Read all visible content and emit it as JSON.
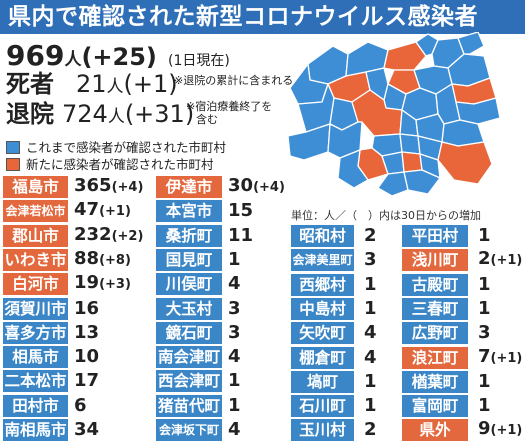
{
  "title": "県内で確認された新型コロナウイルス感染者",
  "summary": {
    "total": "969",
    "total_unit": "人",
    "total_inc": "(+25)",
    "date_note": "(1日現在)",
    "deaths_label": "死者",
    "deaths": "21",
    "deaths_unit": "人",
    "deaths_inc": "(+1)",
    "deaths_note": "※退院の累計に含まれる",
    "recovered_label": "退院",
    "recovered": "724",
    "recovered_unit": "人",
    "recovered_inc": "(+31)",
    "recovered_note_1": "※宿泊療養終了を",
    "recovered_note_2": "含む"
  },
  "legend": {
    "prior": "これまで感染者が確認された市町村",
    "new": "新たに感染者が確認された市町村",
    "prior_color": "#3e8ed6",
    "new_color": "#e8663a"
  },
  "unit_note": "単位：人／（　）内は30日からの増加",
  "col1": [
    {
      "name": "福島市",
      "value": "365",
      "inc": "(+4)",
      "new": true
    },
    {
      "name": "会津若松市",
      "value": "47",
      "inc": "(+1)",
      "new": true
    },
    {
      "name": "郡山市",
      "value": "232",
      "inc": "(+2)",
      "new": true
    },
    {
      "name": "いわき市",
      "value": "88",
      "inc": "(+8)",
      "new": true
    },
    {
      "name": "白河市",
      "value": "19",
      "inc": "(+3)",
      "new": true
    },
    {
      "name": "須賀川市",
      "value": "16",
      "inc": "",
      "new": false
    },
    {
      "name": "喜多方市",
      "value": "13",
      "inc": "",
      "new": false
    },
    {
      "name": "相馬市",
      "value": "10",
      "inc": "",
      "new": false
    },
    {
      "name": "二本松市",
      "value": "17",
      "inc": "",
      "new": false
    },
    {
      "name": "田村市",
      "value": "6",
      "inc": "",
      "new": false
    },
    {
      "name": "南相馬市",
      "value": "34",
      "inc": "",
      "new": false
    }
  ],
  "col2": [
    {
      "name": "伊達市",
      "value": "30",
      "inc": "(+4)",
      "new": true
    },
    {
      "name": "本宮市",
      "value": "15",
      "inc": "",
      "new": false
    },
    {
      "name": "桑折町",
      "value": "11",
      "inc": "",
      "new": false
    },
    {
      "name": "国見町",
      "value": "1",
      "inc": "",
      "new": false
    },
    {
      "name": "川俣町",
      "value": "4",
      "inc": "",
      "new": false
    },
    {
      "name": "大玉村",
      "value": "3",
      "inc": "",
      "new": false
    },
    {
      "name": "鏡石町",
      "value": "3",
      "inc": "",
      "new": false
    },
    {
      "name": "南会津町",
      "value": "4",
      "inc": "",
      "new": false
    },
    {
      "name": "西会津町",
      "value": "1",
      "inc": "",
      "new": false
    },
    {
      "name": "猪苗代町",
      "value": "1",
      "inc": "",
      "new": false
    },
    {
      "name": "会津坂下町",
      "value": "4",
      "inc": "",
      "new": false
    }
  ],
  "col3": [
    {
      "name": "昭和村",
      "value": "2",
      "inc": "",
      "new": false
    },
    {
      "name": "会津美里町",
      "value": "3",
      "inc": "",
      "new": false
    },
    {
      "name": "西郷村",
      "value": "1",
      "inc": "",
      "new": false
    },
    {
      "name": "中島村",
      "value": "1",
      "inc": "",
      "new": false
    },
    {
      "name": "矢吹町",
      "value": "4",
      "inc": "",
      "new": false
    },
    {
      "name": "棚倉町",
      "value": "4",
      "inc": "",
      "new": false
    },
    {
      "name": "塙町",
      "value": "1",
      "inc": "",
      "new": false
    },
    {
      "name": "石川町",
      "value": "1",
      "inc": "",
      "new": false
    },
    {
      "name": "玉川村",
      "value": "2",
      "inc": "",
      "new": false
    }
  ],
  "col4": [
    {
      "name": "平田村",
      "value": "1",
      "inc": "",
      "new": false
    },
    {
      "name": "浅川町",
      "value": "2",
      "inc": "(+1)",
      "new": true
    },
    {
      "name": "古殿町",
      "value": "1",
      "inc": "",
      "new": false
    },
    {
      "name": "三春町",
      "value": "1",
      "inc": "",
      "new": false
    },
    {
      "name": "広野町",
      "value": "3",
      "inc": "",
      "new": false
    },
    {
      "name": "浪江町",
      "value": "7",
      "inc": "(+1)",
      "new": true
    },
    {
      "name": "楢葉町",
      "value": "1",
      "inc": "",
      "new": false
    },
    {
      "name": "富岡町",
      "value": "1",
      "inc": "",
      "new": false
    },
    {
      "name": "県外",
      "value": "9",
      "inc": "(+1)",
      "new": true
    }
  ]
}
